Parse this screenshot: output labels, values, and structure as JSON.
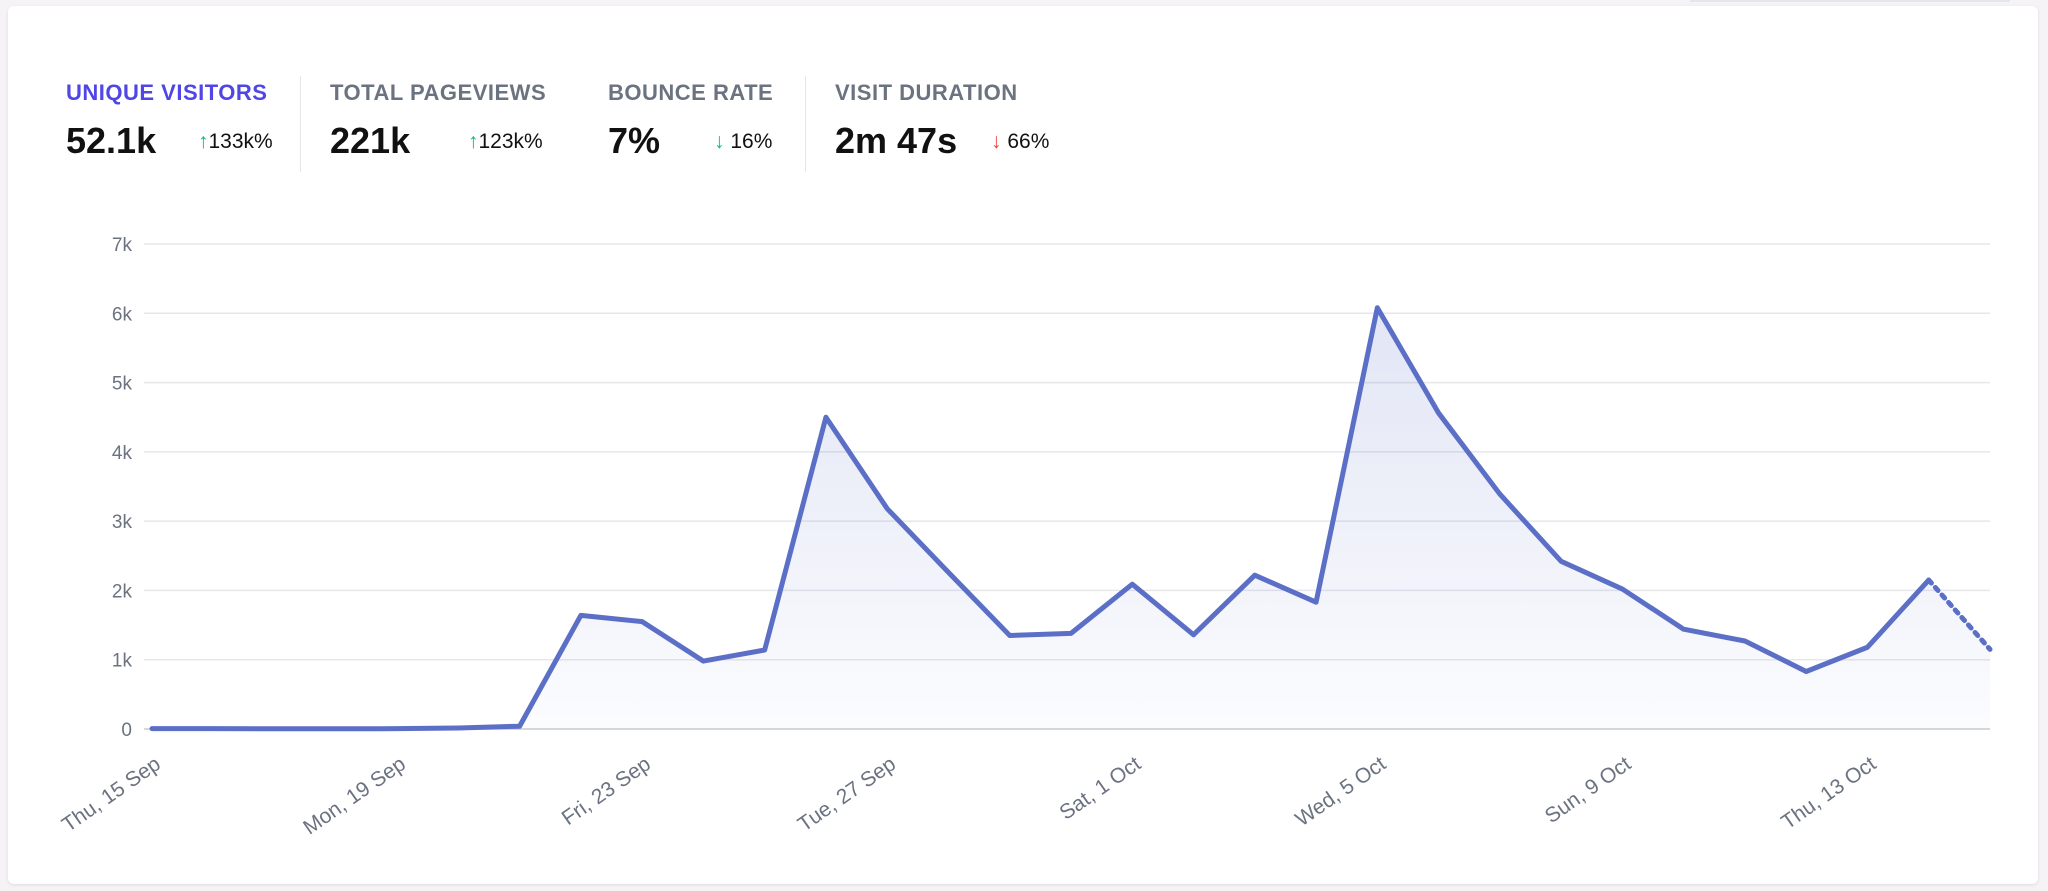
{
  "stats": [
    {
      "label": "UNIQUE VISITORS",
      "value": "52.1k",
      "arrow": "↑",
      "change": "133k%"
    },
    {
      "label": "TOTAL PAGEVIEWS",
      "value": "221k",
      "arrow": "↑",
      "change": "123k%"
    },
    {
      "label": "BOUNCE RATE",
      "value": "7%",
      "arrow": "↓",
      "change": " 16%"
    },
    {
      "label": "VISIT DURATION",
      "value": "2m 47s",
      "arrow": "↓",
      "change": " 66%"
    }
  ],
  "colors": {
    "line": "#5b6fc7",
    "active_label": "#4f46e5",
    "up": "#10b981",
    "down_bad": "#ef4444"
  },
  "chart_data": {
    "type": "area",
    "ylim": [
      0,
      7000
    ],
    "y_ticks": [
      0,
      1000,
      2000,
      3000,
      4000,
      5000,
      6000,
      7000
    ],
    "y_tick_labels": [
      "0",
      "1k",
      "2k",
      "3k",
      "4k",
      "5k",
      "6k",
      "7k"
    ],
    "x_tick_labels": [
      "Thu, 15 Sep",
      "Mon, 19 Sep",
      "Fri, 23 Sep",
      "Tue, 27 Sep",
      "Sat, 1 Oct",
      "Wed, 5 Oct",
      "Sun, 9 Oct",
      "Thu, 13 Oct"
    ],
    "grid": true,
    "series": [
      {
        "values": [
          5,
          5,
          3,
          3,
          5,
          15,
          40,
          1640,
          1550,
          980,
          1140,
          4500,
          3180,
          2260,
          1350,
          1380,
          2090,
          1360,
          2220,
          1830,
          6080,
          4560,
          3390,
          2420,
          2020,
          1440,
          1270,
          830,
          1180,
          2150,
          1150
        ],
        "incomplete_last_point": true
      }
    ]
  }
}
